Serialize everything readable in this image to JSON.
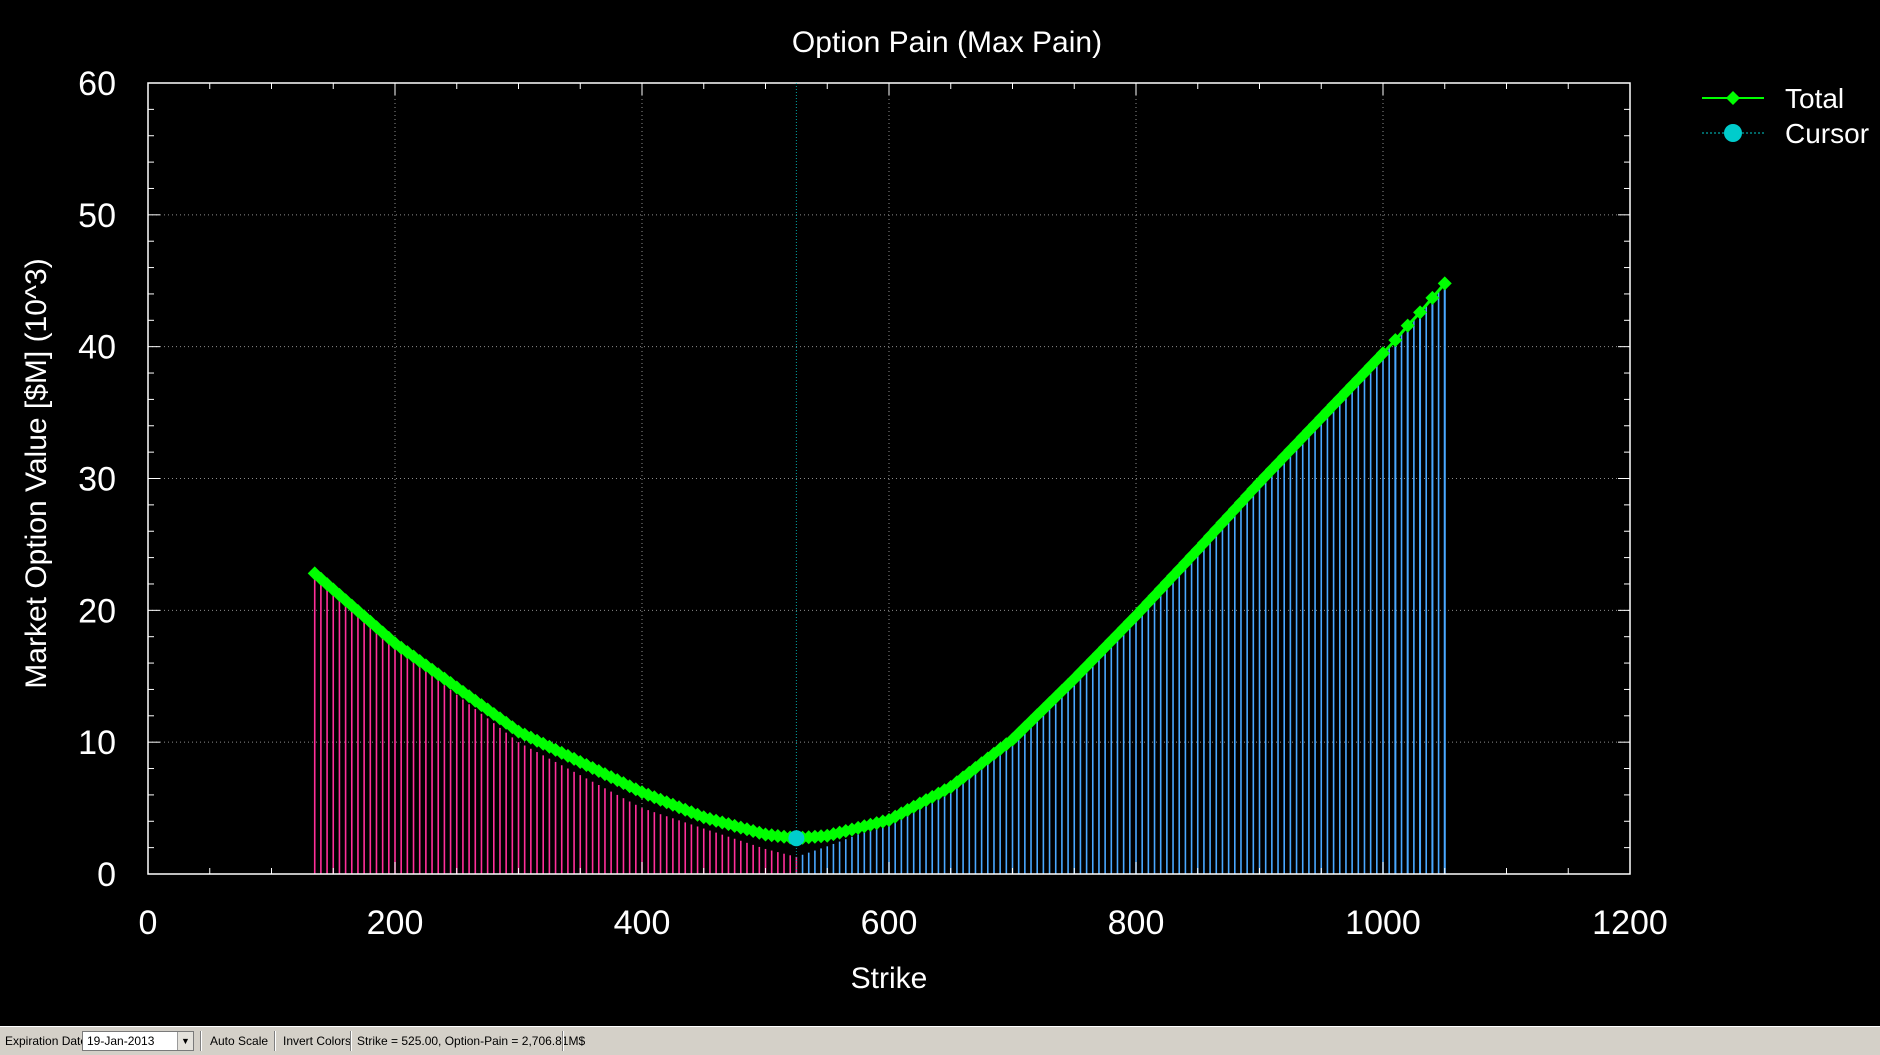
{
  "chart_data": {
    "type": "line",
    "title": "Option Pain (Max Pain)",
    "xlabel": "Strike",
    "ylabel": "Market Option Value [$M] (10^3)",
    "xlim": [
      0,
      1200
    ],
    "ylim": [
      0,
      60
    ],
    "x_ticks": [
      0,
      200,
      400,
      600,
      800,
      1000,
      1200
    ],
    "y_ticks": [
      0,
      10,
      20,
      30,
      40,
      50,
      60
    ],
    "grid": true,
    "legend_position": "top-right, outside plot",
    "cursor_strike": 525,
    "series": [
      {
        "name": "Total",
        "color": "#00ff00",
        "marker": "diamond",
        "points": [
          [
            135,
            22.8
          ],
          [
            200,
            17.5
          ],
          [
            300,
            10.8
          ],
          [
            400,
            6.2
          ],
          [
            450,
            4.3
          ],
          [
            500,
            3.0
          ],
          [
            525,
            2.71
          ],
          [
            550,
            2.9
          ],
          [
            600,
            4.1
          ],
          [
            650,
            6.6
          ],
          [
            700,
            10.2
          ],
          [
            750,
            14.8
          ],
          [
            800,
            19.6
          ],
          [
            850,
            24.6
          ],
          [
            900,
            29.7
          ],
          [
            950,
            34.6
          ],
          [
            1000,
            39.5
          ],
          [
            1010,
            40.5
          ],
          [
            1020,
            41.6
          ],
          [
            1030,
            42.6
          ],
          [
            1040,
            43.7
          ],
          [
            1050,
            44.8
          ]
        ]
      },
      {
        "name": "Cursor",
        "color": "#00cccc",
        "marker": "circle",
        "points": [
          [
            525,
            2.71
          ]
        ]
      }
    ],
    "components": [
      {
        "color": "#ff2f9a",
        "points": [
          [
            135,
            22.8
          ],
          [
            200,
            17.2
          ],
          [
            300,
            10.0
          ],
          [
            400,
            5.0
          ],
          [
            500,
            1.9
          ],
          [
            525,
            1.3
          ],
          [
            550,
            0.8
          ],
          [
            600,
            0.2
          ],
          [
            650,
            0.0
          ]
        ]
      },
      {
        "color": "#4aa8ff",
        "points": [
          [
            400,
            0.0
          ],
          [
            500,
            0.6
          ],
          [
            525,
            1.3
          ],
          [
            550,
            2.1
          ],
          [
            600,
            3.9
          ],
          [
            650,
            6.6
          ],
          [
            700,
            10.2
          ],
          [
            750,
            14.8
          ],
          [
            800,
            19.6
          ],
          [
            850,
            24.6
          ],
          [
            900,
            29.7
          ],
          [
            950,
            34.6
          ],
          [
            1000,
            39.5
          ],
          [
            1050,
            44.8
          ]
        ]
      }
    ],
    "colors": {
      "background": "#000000",
      "plot_frame": "#ffffff",
      "grid": "#8c8c8c",
      "text": "#ffffff"
    }
  },
  "status_bar": {
    "expiration_label": "Expiration Date:",
    "expiration_value": "19-Jan-2013",
    "auto_scale": "Auto Scale",
    "invert_colors": "Invert Colors",
    "readout": "Strike = 525.00, Option-Pain = 2,706.81M$"
  }
}
